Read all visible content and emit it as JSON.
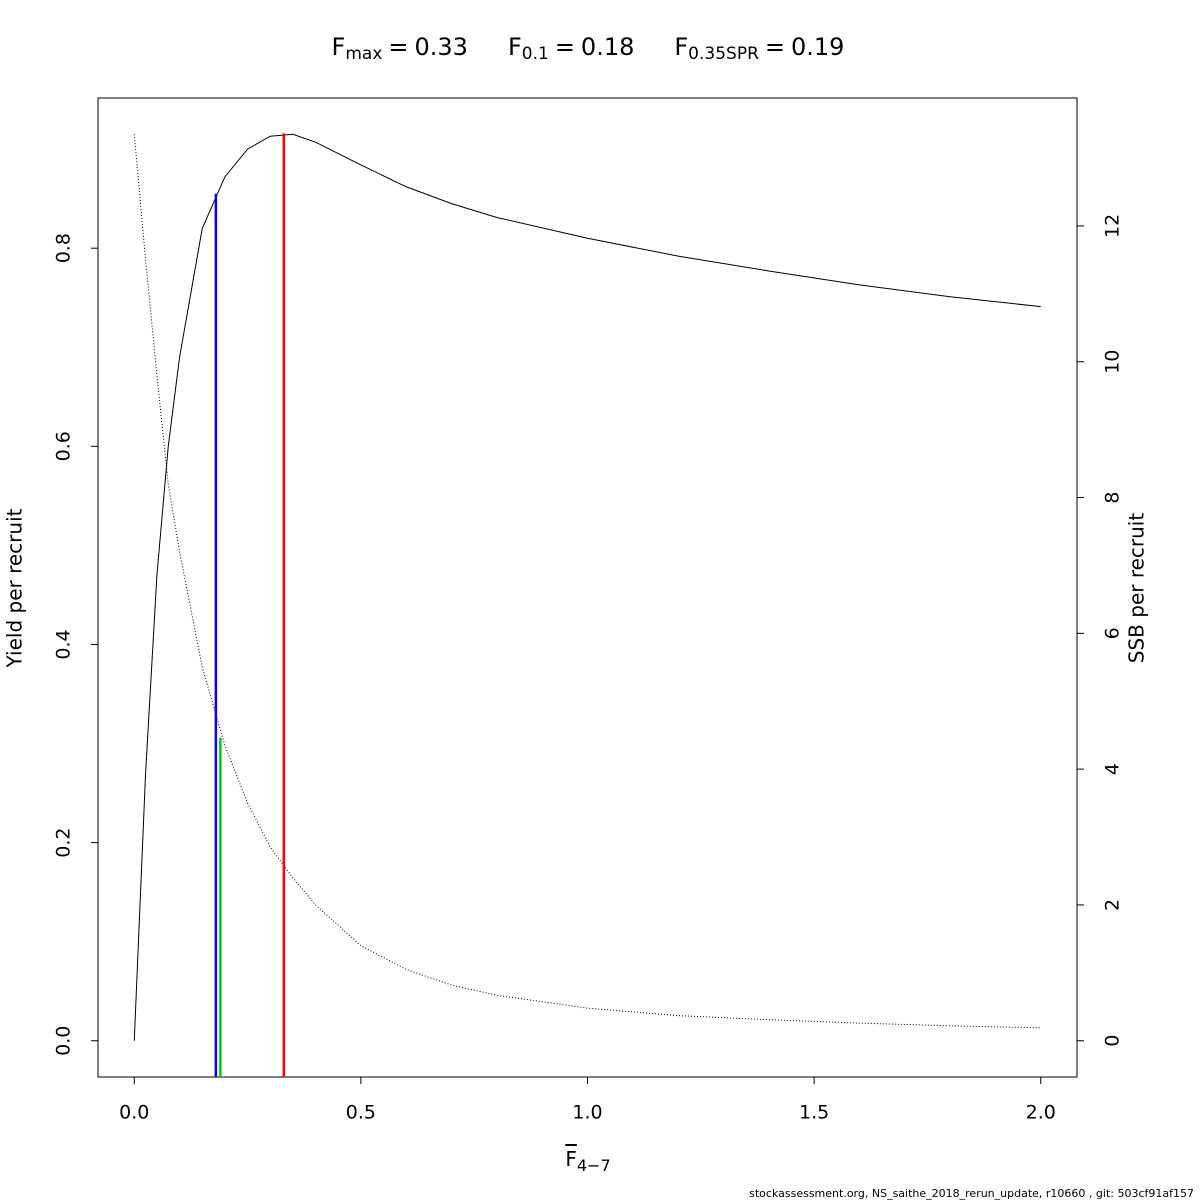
{
  "chart_data": {
    "type": "line",
    "title_parts": [
      {
        "label": "F",
        "subscript": "max",
        "sign": "=",
        "value": 0.33
      },
      {
        "label": "F",
        "subscript": "0.1",
        "sign": "=",
        "value": 0.18
      },
      {
        "label": "F",
        "subscript": "0.35SPR",
        "sign": "=",
        "value": 0.19
      }
    ],
    "x_label": {
      "text": "F",
      "subscript": "4−7"
    },
    "y_label": "Yield per recruit",
    "y2_label": "SSB per recruit",
    "footer": "stockassessment.org, NS_saithe_2018_rerun_update, r10660 , git: 503cf91af157",
    "x": [
      0,
      0.025,
      0.05,
      0.075,
      0.1,
      0.15,
      0.2,
      0.25,
      0.3,
      0.35,
      0.4,
      0.5,
      0.6,
      0.7,
      0.8,
      1.0,
      1.2,
      1.4,
      1.6,
      1.8,
      2.0
    ],
    "series": [
      {
        "name": "Yield per recruit",
        "color": "#000000",
        "dash": "solid",
        "axis": "y",
        "values": [
          0,
          0.27,
          0.47,
          0.6,
          0.69,
          0.82,
          0.872,
          0.9,
          0.913,
          0.915,
          0.907,
          0.884,
          0.862,
          0.845,
          0.831,
          0.81,
          0.792,
          0.777,
          0.763,
          0.751,
          0.741
        ]
      },
      {
        "name": "SSB per recruit",
        "color": "#000000",
        "dash": "dotted",
        "axis": "y2",
        "values": [
          13.35,
          11.5,
          9.8,
          8.2,
          7.2,
          5.5,
          4.35,
          3.5,
          2.85,
          2.4,
          2.0,
          1.4,
          1.05,
          0.82,
          0.67,
          0.48,
          0.37,
          0.31,
          0.26,
          0.22,
          0.19
        ]
      }
    ],
    "reference_lines": [
      {
        "x": 0.18,
        "top": 0.855,
        "axis": "y",
        "color": "#0000ff"
      },
      {
        "x": 0.19,
        "top": 4.46,
        "axis": "y2",
        "color": "#00cc00"
      },
      {
        "x": 0.33,
        "top": 0.916,
        "axis": "y",
        "color": "#ff0000"
      }
    ],
    "xlim": [
      -0.08,
      2.08
    ],
    "xticks": [
      {
        "value": 0,
        "label": "0.0"
      },
      0.5,
      {
        "value": 1,
        "label": "1.0"
      },
      1.5,
      {
        "value": 2,
        "label": "2.0"
      }
    ],
    "ylim": [
      -0.0366,
      0.9516
    ],
    "yticks": [
      {
        "value": 0,
        "label": "0.0"
      },
      0.2,
      0.4,
      0.6,
      0.8
    ],
    "y2lim": [
      -0.534,
      13.884
    ],
    "y2ticks": [
      0,
      2,
      4,
      6,
      8,
      10,
      12
    ],
    "grid": false
  }
}
